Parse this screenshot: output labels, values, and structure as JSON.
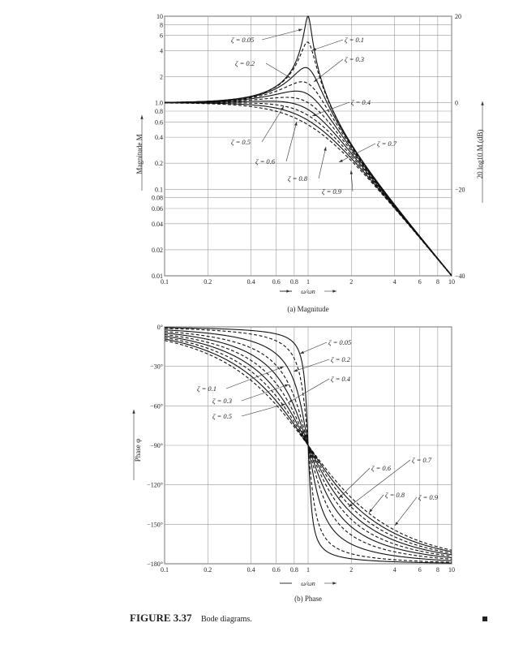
{
  "figure": {
    "caption_number": "FIGURE 3.37",
    "caption_text": "Bode diagrams."
  },
  "chart_data": [
    {
      "type": "line",
      "title": "(a) Magnitude",
      "xlabel": "ω/ωn",
      "ylabel": "Magnitude M",
      "ylabel_right": "20 log10 M (dB)",
      "xscale": "log",
      "yscale": "log",
      "xlim": [
        0.1,
        10
      ],
      "ylim": [
        0.01,
        10
      ],
      "grid": true,
      "x_ticks": [
        "0.1",
        "0.2",
        "0.4",
        "0.6",
        "0.8",
        "1",
        "2",
        "4",
        "6",
        "8",
        "10"
      ],
      "x_tick_values": [
        0.1,
        0.2,
        0.4,
        0.6,
        0.8,
        1,
        2,
        4,
        6,
        8,
        10
      ],
      "y_ticks": [
        "10",
        "8",
        "6",
        "4",
        "2",
        "1.0",
        "0.8",
        "0.6",
        "0.4",
        "0.2",
        "0.1",
        "0.08",
        "0.06",
        "0.04",
        "0.02",
        "0.01"
      ],
      "y_tick_values": [
        10,
        8,
        6,
        4,
        2,
        1,
        0.8,
        0.6,
        0.4,
        0.2,
        0.1,
        0.08,
        0.06,
        0.04,
        0.02,
        0.01
      ],
      "y_right_ticks": [
        "20",
        "0",
        "−20",
        "−40"
      ],
      "y_right_tick_values": [
        10,
        1,
        0.1,
        0.01
      ],
      "function": "M = 1/sqrt((1-u^2)^2 + (2ζu)^2)",
      "series": [
        {
          "name": "ζ = 0.05",
          "zeta": 0.05,
          "style": "solid"
        },
        {
          "name": "ζ = 0.1",
          "zeta": 0.1,
          "style": "dashed"
        },
        {
          "name": "ζ = 0.2",
          "zeta": 0.2,
          "style": "solid"
        },
        {
          "name": "ζ = 0.3",
          "zeta": 0.3,
          "style": "dashed"
        },
        {
          "name": "ζ = 0.4",
          "zeta": 0.4,
          "style": "solid"
        },
        {
          "name": "ζ = 0.5",
          "zeta": 0.5,
          "style": "dashed"
        },
        {
          "name": "ζ = 0.6",
          "zeta": 0.6,
          "style": "solid"
        },
        {
          "name": "ζ = 0.7",
          "zeta": 0.7,
          "style": "dashed"
        },
        {
          "name": "ζ = 0.8",
          "zeta": 0.8,
          "style": "solid"
        },
        {
          "name": "ζ = 0.9",
          "zeta": 0.9,
          "style": "dashed"
        }
      ]
    },
    {
      "type": "line",
      "title": "(b) Phase",
      "xlabel": "ω/ωn",
      "ylabel": "Phase φ",
      "xscale": "log",
      "xlim": [
        0.1,
        10
      ],
      "ylim": [
        -180,
        0
      ],
      "grid": true,
      "x_ticks": [
        "0.1",
        "0.2",
        "0.4",
        "0.6",
        "0.8",
        "1",
        "2",
        "4",
        "6",
        "8",
        "10"
      ],
      "x_tick_values": [
        0.1,
        0.2,
        0.4,
        0.6,
        0.8,
        1,
        2,
        4,
        6,
        8,
        10
      ],
      "y_ticks": [
        "0°",
        "−30°",
        "−60°",
        "−90°",
        "−120°",
        "−150°",
        "−180°"
      ],
      "y_tick_values": [
        0,
        -30,
        -60,
        -90,
        -120,
        -150,
        -180
      ],
      "function": "φ = -atan2(2ζu, 1-u^2)",
      "series": [
        {
          "name": "ζ = 0.05",
          "zeta": 0.05,
          "style": "solid"
        },
        {
          "name": "ζ = 0.1",
          "zeta": 0.1,
          "style": "dashed"
        },
        {
          "name": "ζ = 0.2",
          "zeta": 0.2,
          "style": "solid"
        },
        {
          "name": "ζ = 0.3",
          "zeta": 0.3,
          "style": "dashed"
        },
        {
          "name": "ζ = 0.4",
          "zeta": 0.4,
          "style": "solid"
        },
        {
          "name": "ζ = 0.5",
          "zeta": 0.5,
          "style": "dashed"
        },
        {
          "name": "ζ = 0.6",
          "zeta": 0.6,
          "style": "solid"
        },
        {
          "name": "ζ = 0.7",
          "zeta": 0.7,
          "style": "dashed"
        },
        {
          "name": "ζ = 0.8",
          "zeta": 0.8,
          "style": "solid"
        },
        {
          "name": "ζ = 0.9",
          "zeta": 0.9,
          "style": "dashed"
        }
      ]
    }
  ]
}
